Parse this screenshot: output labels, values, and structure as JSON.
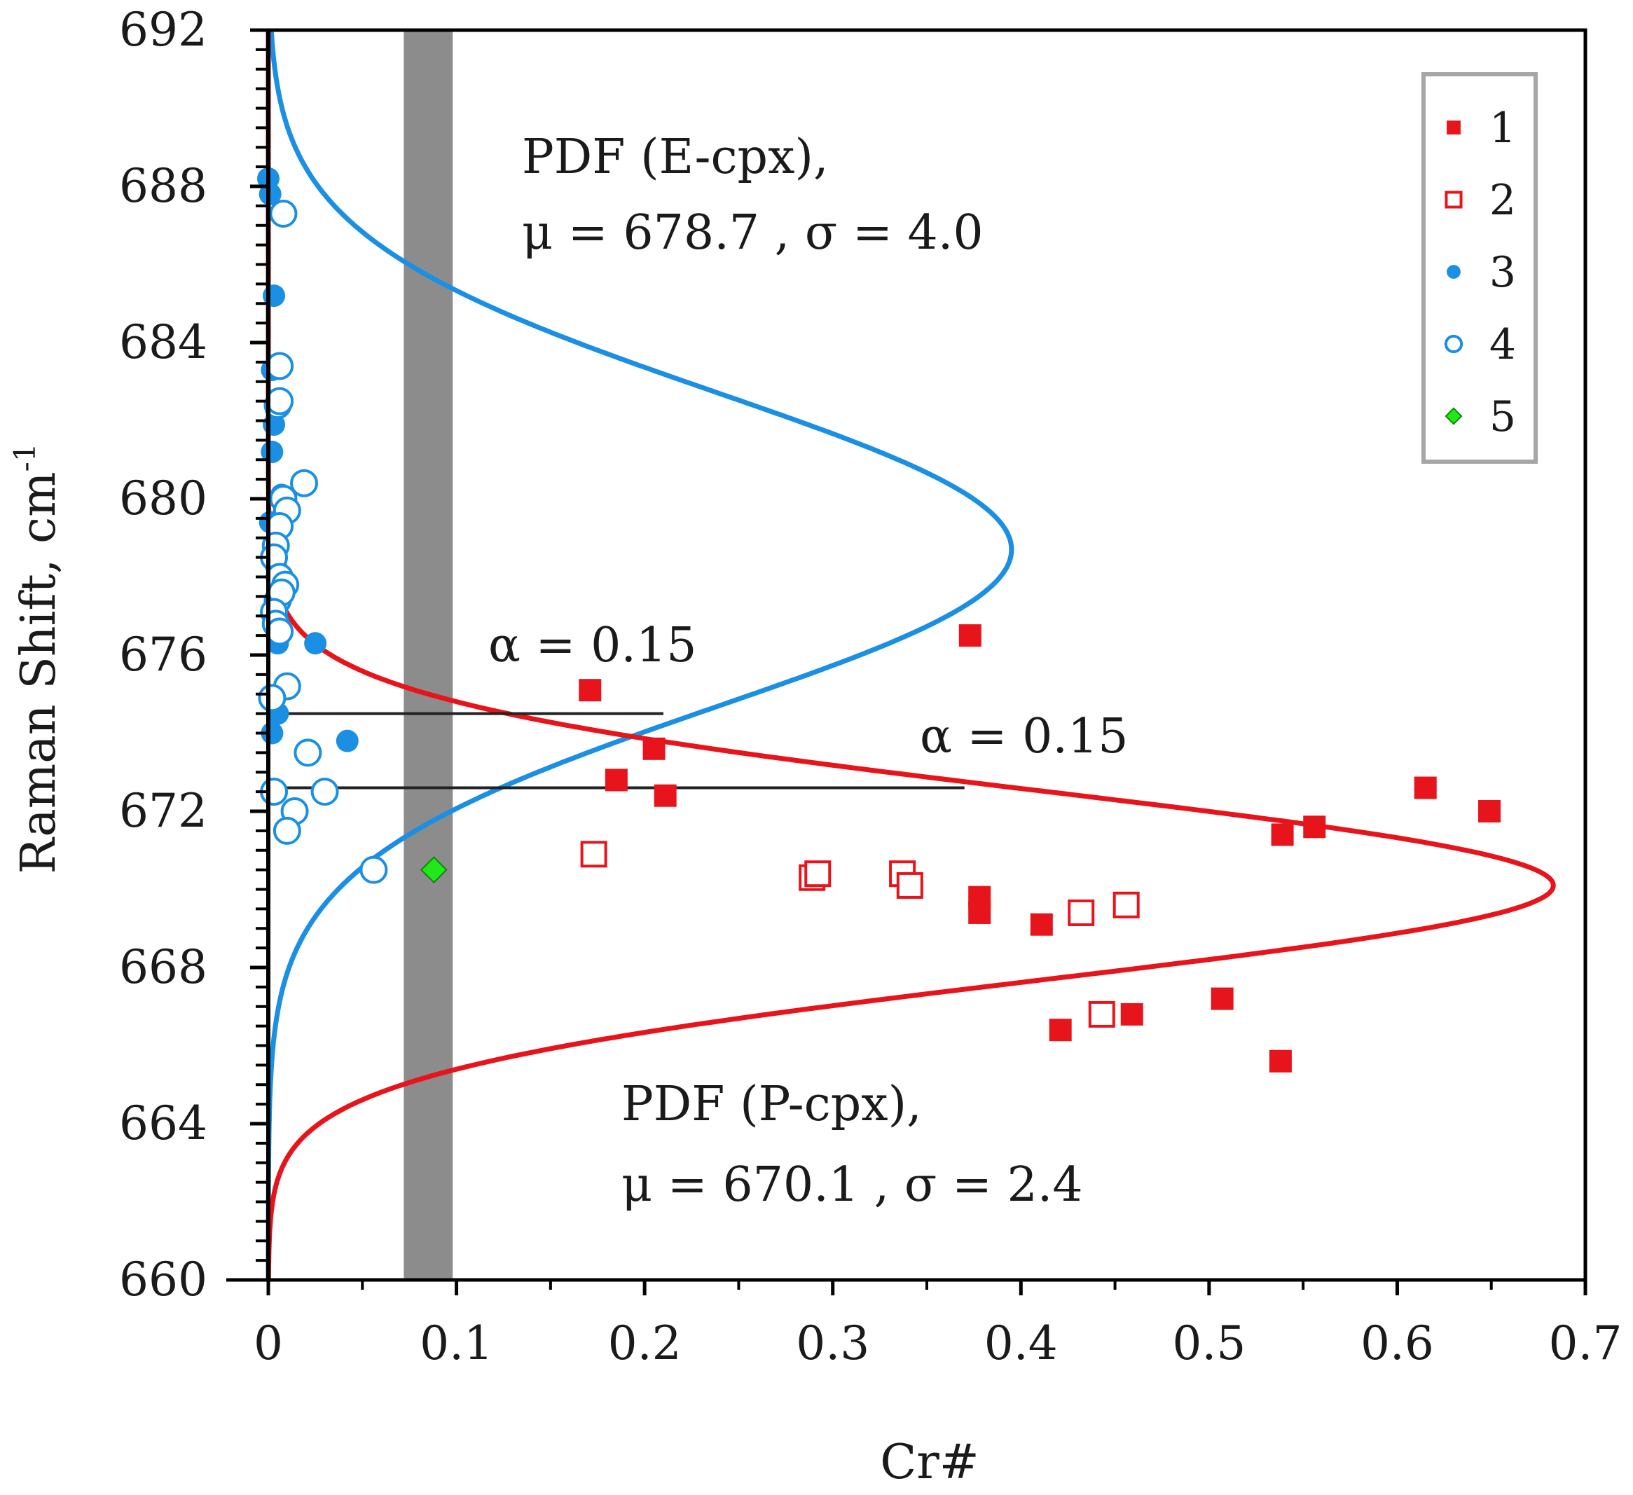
{
  "chart_data": {
    "type": "scatter",
    "title": "",
    "xlabel": "Cr#",
    "ylabel": "Raman Shift, cm",
    "ylabel_superscript": "-1",
    "xlim": [
      0,
      0.7
    ],
    "ylim": [
      660,
      692
    ],
    "x_ticks": [
      "0",
      "0.1",
      "0.2",
      "0.3",
      "0.4",
      "0.5",
      "0.6",
      "0.7"
    ],
    "y_ticks": [
      "660",
      "664",
      "668",
      "672",
      "676",
      "680",
      "684",
      "688",
      "692"
    ],
    "grid": false,
    "legend_position": "top-right",
    "shaded_band": {
      "x_from": 0.072,
      "x_to": 0.098,
      "color": "#8c8c8c"
    },
    "colors": {
      "red": "#e8141b",
      "blue": "#1a8fe3",
      "green": "#22e81a",
      "line": "#222222"
    },
    "annotations": {
      "pdf_e_line1": "PDF (E-cpx),",
      "pdf_e_line2": "μ = 678.7 , σ = 4.0",
      "pdf_p_line1": "PDF (P-cpx),",
      "pdf_p_line2": "μ = 670.1 , σ = 2.4",
      "alpha_upper": "α = 0.15",
      "alpha_lower": "α = 0.15"
    },
    "distributions": [
      {
        "name": "PDF (E-cpx)",
        "mu": 678.7,
        "sigma": 4.0,
        "color": "#1a8fe3",
        "peak_x": 0.395
      },
      {
        "name": "PDF (P-cpx)",
        "mu": 670.1,
        "sigma": 2.4,
        "color": "#e8141b",
        "peak_x": 0.683
      }
    ],
    "alpha_lines": [
      {
        "y": 674.5,
        "x_from": 0,
        "x_to": 0.21
      },
      {
        "y": 672.6,
        "x_from": 0,
        "x_to": 0.37
      }
    ],
    "series": [
      {
        "name": "1",
        "marker": "filled-square",
        "color": "#e8141b",
        "points": [
          [
            0.373,
            676.5
          ],
          [
            0.171,
            675.1
          ],
          [
            0.205,
            673.6
          ],
          [
            0.185,
            672.8
          ],
          [
            0.211,
            672.4
          ],
          [
            0.378,
            669.8
          ],
          [
            0.378,
            669.4
          ],
          [
            0.411,
            669.1
          ],
          [
            0.539,
            671.4
          ],
          [
            0.556,
            671.6
          ],
          [
            0.615,
            672.6
          ],
          [
            0.649,
            672.0
          ],
          [
            0.507,
            667.2
          ],
          [
            0.421,
            666.4
          ],
          [
            0.459,
            666.8
          ],
          [
            0.538,
            665.6
          ]
        ]
      },
      {
        "name": "2",
        "marker": "open-square",
        "color": "#e8141b",
        "points": [
          [
            0.173,
            670.9
          ],
          [
            0.289,
            670.3
          ],
          [
            0.292,
            670.4
          ],
          [
            0.337,
            670.4
          ],
          [
            0.341,
            670.1
          ],
          [
            0.432,
            669.4
          ],
          [
            0.456,
            669.6
          ],
          [
            0.443,
            666.8
          ]
        ]
      },
      {
        "name": "3",
        "marker": "filled-circle",
        "color": "#1a8fe3",
        "points": [
          [
            0.0,
            688.2
          ],
          [
            0.001,
            687.8
          ],
          [
            0.003,
            685.2
          ],
          [
            0.002,
            683.3
          ],
          [
            0.004,
            682.3
          ],
          [
            0.003,
            681.9
          ],
          [
            0.002,
            681.2
          ],
          [
            0.007,
            680.1
          ],
          [
            0.001,
            679.4
          ],
          [
            0.004,
            678.3
          ],
          [
            0.005,
            676.3
          ],
          [
            0.025,
            676.3
          ],
          [
            0.005,
            674.5
          ],
          [
            0.002,
            674.0
          ],
          [
            0.042,
            673.8
          ]
        ]
      },
      {
        "name": "4",
        "marker": "open-circle",
        "color": "#1a8fe3",
        "points": [
          [
            0.008,
            687.3
          ],
          [
            0.006,
            683.4
          ],
          [
            0.005,
            682.4
          ],
          [
            0.006,
            682.5
          ],
          [
            0.019,
            680.4
          ],
          [
            0.008,
            680.0
          ],
          [
            0.01,
            679.7
          ],
          [
            0.006,
            679.3
          ],
          [
            0.004,
            678.8
          ],
          [
            0.003,
            678.5
          ],
          [
            0.006,
            678.0
          ],
          [
            0.009,
            677.8
          ],
          [
            0.005,
            677.4
          ],
          [
            0.007,
            677.6
          ],
          [
            0.003,
            677.1
          ],
          [
            0.004,
            676.8
          ],
          [
            0.006,
            676.6
          ],
          [
            0.01,
            675.2
          ],
          [
            0.002,
            674.9
          ],
          [
            0.021,
            673.5
          ],
          [
            0.003,
            672.5
          ],
          [
            0.014,
            672.0
          ],
          [
            0.03,
            672.5
          ],
          [
            0.01,
            671.5
          ],
          [
            0.056,
            670.5
          ]
        ]
      },
      {
        "name": "5",
        "marker": "filled-diamond",
        "color": "#22e81a",
        "points": [
          [
            0.088,
            670.5
          ]
        ]
      }
    ]
  },
  "legend": {
    "items": [
      {
        "label": "1",
        "marker": "filled-square",
        "color": "#e8141b"
      },
      {
        "label": "2",
        "marker": "open-square",
        "color": "#e8141b"
      },
      {
        "label": "3",
        "marker": "filled-circle",
        "color": "#1a8fe3"
      },
      {
        "label": "4",
        "marker": "open-circle",
        "color": "#1a8fe3"
      },
      {
        "label": "5",
        "marker": "filled-diamond",
        "color": "#22e81a"
      }
    ]
  }
}
